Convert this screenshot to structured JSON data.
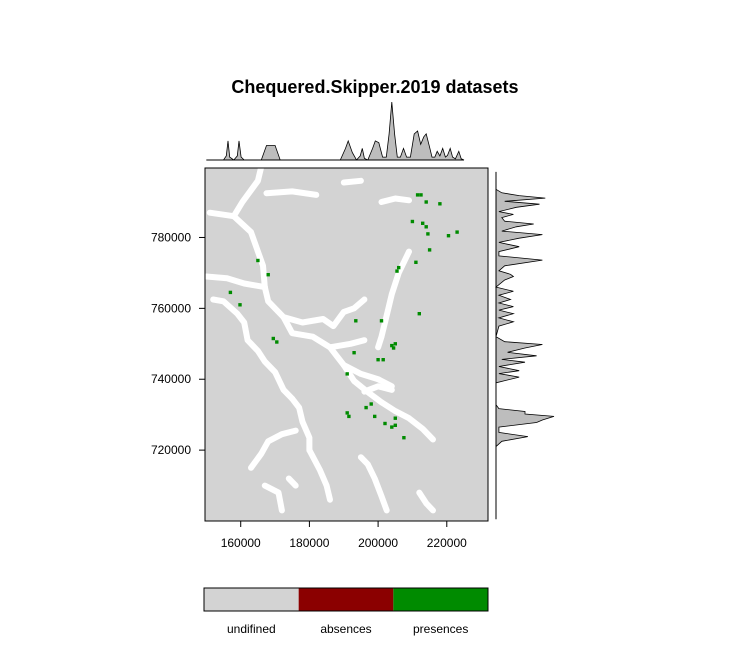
{
  "chart_data": {
    "type": "raster-map",
    "title": "Chequered.Skipper.2019 datasets",
    "x_ticks": [
      {
        "value": 160000,
        "label": "160000"
      },
      {
        "value": 180000,
        "label": "180000"
      },
      {
        "value": 200000,
        "label": "200000"
      },
      {
        "value": 220000,
        "label": "220000"
      }
    ],
    "y_ticks": [
      {
        "value": 720000,
        "label": "720000"
      },
      {
        "value": 740000,
        "label": "740000"
      },
      {
        "value": 760000,
        "label": "760000"
      },
      {
        "value": 780000,
        "label": "780000"
      }
    ],
    "xlim": [
      149600,
      232000
    ],
    "ylim": [
      700000,
      799600
    ],
    "legend": [
      {
        "label": "undifined",
        "color": "#d3d3d3"
      },
      {
        "label": "absences",
        "color": "#8b0000"
      },
      {
        "label": "presences",
        "color": "#008b00"
      }
    ],
    "presence_points": [
      [
        157000,
        764500
      ],
      [
        159800,
        761000
      ],
      [
        165000,
        773500
      ],
      [
        168000,
        769500
      ],
      [
        169500,
        751500
      ],
      [
        170500,
        750500
      ],
      [
        191000,
        730500
      ],
      [
        191500,
        729500
      ],
      [
        191000,
        741500
      ],
      [
        193000,
        747500
      ],
      [
        193500,
        756500
      ],
      [
        196500,
        732000
      ],
      [
        198000,
        733000
      ],
      [
        199000,
        729500
      ],
      [
        200000,
        745500
      ],
      [
        201500,
        745500
      ],
      [
        201000,
        756500
      ],
      [
        202000,
        727500
      ],
      [
        204000,
        749500
      ],
      [
        205000,
        750000
      ],
      [
        204500,
        748800
      ],
      [
        205000,
        729000
      ],
      [
        205000,
        727000
      ],
      [
        204000,
        726500
      ],
      [
        207500,
        723500
      ],
      [
        205500,
        770500
      ],
      [
        206000,
        771500
      ],
      [
        210000,
        784500
      ],
      [
        211000,
        773000
      ],
      [
        212000,
        758500
      ],
      [
        211500,
        792000
      ],
      [
        212500,
        792000
      ],
      [
        214000,
        790000
      ],
      [
        213000,
        784000
      ],
      [
        214000,
        783000
      ],
      [
        214500,
        781000
      ],
      [
        215000,
        776500
      ],
      [
        218000,
        789500
      ],
      [
        220500,
        780500
      ],
      [
        223000,
        781500
      ]
    ],
    "top_density": [
      [
        150000,
        0
      ],
      [
        155000,
        0
      ],
      [
        155800,
        0.07
      ],
      [
        156300,
        0.33
      ],
      [
        156800,
        0.05
      ],
      [
        158000,
        0
      ],
      [
        159000,
        0.07
      ],
      [
        159500,
        0.33
      ],
      [
        160100,
        0.05
      ],
      [
        161000,
        0
      ],
      [
        166000,
        0
      ],
      [
        167500,
        0.25
      ],
      [
        170000,
        0.25
      ],
      [
        171500,
        0
      ],
      [
        189000,
        0
      ],
      [
        190500,
        0.2
      ],
      [
        191300,
        0.33
      ],
      [
        192500,
        0.13
      ],
      [
        193700,
        0
      ],
      [
        194800,
        0.07
      ],
      [
        195400,
        0.2
      ],
      [
        196000,
        0.03
      ],
      [
        197000,
        0
      ],
      [
        198400,
        0.2
      ],
      [
        199200,
        0.33
      ],
      [
        200200,
        0.3
      ],
      [
        201300,
        0.05
      ],
      [
        202400,
        0.05
      ],
      [
        203200,
        0.45
      ],
      [
        204000,
        1.0
      ],
      [
        204800,
        0.45
      ],
      [
        205600,
        0.05
      ],
      [
        206500,
        0.05
      ],
      [
        207400,
        0.2
      ],
      [
        208300,
        0.05
      ],
      [
        209400,
        0.05
      ],
      [
        210500,
        0.45
      ],
      [
        211500,
        0.5
      ],
      [
        212400,
        0.27
      ],
      [
        213300,
        0.4
      ],
      [
        214000,
        0.45
      ],
      [
        215000,
        0.22
      ],
      [
        215700,
        0.05
      ],
      [
        216500,
        0.05
      ],
      [
        217200,
        0.15
      ],
      [
        218000,
        0.07
      ],
      [
        218800,
        0.2
      ],
      [
        219600,
        0.05
      ],
      [
        220200,
        0.08
      ],
      [
        221000,
        0.2
      ],
      [
        221700,
        0.05
      ],
      [
        222500,
        0.02
      ],
      [
        223500,
        0.15
      ],
      [
        224200,
        0.02
      ],
      [
        225000,
        0
      ]
    ],
    "right_density": [
      [
        721000,
        0
      ],
      [
        722500,
        0.1
      ],
      [
        723800,
        0.55
      ],
      [
        725000,
        0.05
      ],
      [
        726500,
        0.05
      ],
      [
        727800,
        0.7
      ],
      [
        728500,
        0.8
      ],
      [
        729500,
        1.0
      ],
      [
        730200,
        0.5
      ],
      [
        730900,
        0.5
      ],
      [
        731700,
        0.05
      ],
      [
        732800,
        0
      ],
      [
        739000,
        0
      ],
      [
        740600,
        0.4
      ],
      [
        741600,
        0.05
      ],
      [
        742400,
        0.4
      ],
      [
        743600,
        0.05
      ],
      [
        744800,
        0.5
      ],
      [
        745600,
        0.1
      ],
      [
        746600,
        0.7
      ],
      [
        747600,
        0.2
      ],
      [
        748800,
        0.5
      ],
      [
        749800,
        0.8
      ],
      [
        750600,
        0.15
      ],
      [
        752000,
        0
      ],
      [
        755000,
        0.05
      ],
      [
        756200,
        0.3
      ],
      [
        757300,
        0.05
      ],
      [
        758500,
        0.3
      ],
      [
        759500,
        0.05
      ],
      [
        760500,
        0.3
      ],
      [
        761500,
        0.05
      ],
      [
        762500,
        0.25
      ],
      [
        763700,
        0.05
      ],
      [
        764800,
        0.3
      ],
      [
        766000,
        0
      ],
      [
        768000,
        0.15
      ],
      [
        769000,
        0.3
      ],
      [
        769600,
        0.25
      ],
      [
        770600,
        0.05
      ],
      [
        772000,
        0.15
      ],
      [
        773600,
        0.8
      ],
      [
        774800,
        0.05
      ],
      [
        776000,
        0.05
      ],
      [
        777400,
        0.4
      ],
      [
        778600,
        0.05
      ],
      [
        779800,
        0.4
      ],
      [
        780800,
        0.8
      ],
      [
        781800,
        0.1
      ],
      [
        783000,
        0.35
      ],
      [
        783800,
        0.65
      ],
      [
        784600,
        0.15
      ],
      [
        785600,
        0.1
      ],
      [
        786500,
        0.3
      ],
      [
        787300,
        0.05
      ],
      [
        788500,
        0.35
      ],
      [
        789400,
        0.75
      ],
      [
        790200,
        0.15
      ],
      [
        791100,
        0.85
      ],
      [
        791800,
        0.4
      ],
      [
        792600,
        0.1
      ],
      [
        793600,
        0
      ]
    ],
    "white_paths": [
      [
        [
          150000,
          769000
        ],
        [
          156000,
          768500
        ],
        [
          161000,
          767000
        ],
        [
          164000,
          766500
        ],
        [
          167000,
          766000
        ]
      ],
      [
        [
          167000,
          766000
        ],
        [
          168000,
          762000
        ],
        [
          172500,
          757500
        ],
        [
          178000,
          756000
        ],
        [
          184000,
          757000
        ],
        [
          187000,
          755000
        ],
        [
          190000,
          759000
        ],
        [
          193000,
          760000
        ],
        [
          196000,
          762500
        ]
      ],
      [
        [
          167000,
          766000
        ],
        [
          166500,
          772000
        ],
        [
          163000,
          781500
        ],
        [
          158000,
          786000
        ]
      ],
      [
        [
          158000,
          786000
        ],
        [
          160500,
          790000
        ],
        [
          165000,
          796000
        ],
        [
          166000,
          800000
        ]
      ],
      [
        [
          158000,
          786000
        ],
        [
          151000,
          787000
        ]
      ],
      [
        [
          152000,
          762500
        ],
        [
          155000,
          762000
        ],
        [
          159000,
          758500
        ],
        [
          161000,
          756000
        ],
        [
          162000,
          751000
        ],
        [
          165000,
          748000
        ],
        [
          167000,
          745000
        ],
        [
          170000,
          742000
        ],
        [
          172500,
          737000
        ],
        [
          175000,
          734500
        ]
      ],
      [
        [
          172500,
          757500
        ],
        [
          175000,
          753000
        ],
        [
          181000,
          752000
        ],
        [
          186000,
          749000
        ],
        [
          190000,
          744000
        ],
        [
          195000,
          741500
        ],
        [
          200000,
          740000
        ],
        [
          204000,
          738000
        ]
      ],
      [
        [
          175000,
          734500
        ],
        [
          177000,
          732000
        ],
        [
          178000,
          728000
        ],
        [
          180000,
          723500
        ],
        [
          180000,
          720000
        ]
      ],
      [
        [
          176000,
          725500
        ],
        [
          172000,
          724500
        ],
        [
          168000,
          722500
        ],
        [
          166000,
          719000
        ],
        [
          163000,
          715000
        ]
      ],
      [
        [
          180000,
          720000
        ],
        [
          183000,
          714500
        ],
        [
          185000,
          710000
        ],
        [
          186000,
          706000
        ]
      ],
      [
        [
          186000,
          749000
        ],
        [
          192000,
          750000
        ],
        [
          196000,
          751000
        ]
      ],
      [
        [
          190000,
          744000
        ],
        [
          193000,
          739500
        ],
        [
          197500,
          736000
        ],
        [
          201000,
          733500
        ],
        [
          205000,
          731000
        ],
        [
          209000,
          729000
        ],
        [
          213000,
          726000
        ],
        [
          216000,
          723000
        ]
      ],
      [
        [
          200000,
          749000
        ],
        [
          201000,
          752000
        ],
        [
          202500,
          758000
        ],
        [
          204000,
          764000
        ],
        [
          206000,
          770000
        ],
        [
          209000,
          776000
        ]
      ],
      [
        [
          196000,
          736500
        ],
        [
          200000,
          738000
        ],
        [
          204000,
          737000
        ]
      ],
      [
        [
          195000,
          718000
        ],
        [
          197000,
          716000
        ],
        [
          199000,
          712000
        ],
        [
          201000,
          707000
        ],
        [
          202500,
          703000
        ]
      ],
      [
        [
          167000,
          710000
        ],
        [
          171000,
          708000
        ],
        [
          172000,
          703000
        ]
      ],
      [
        [
          174000,
          712000
        ],
        [
          176000,
          710000
        ]
      ],
      [
        [
          212000,
          708000
        ],
        [
          214000,
          705000
        ],
        [
          216000,
          703000
        ]
      ],
      [
        [
          167500,
          792500
        ],
        [
          175000,
          793000
        ],
        [
          182000,
          792000
        ]
      ],
      [
        [
          190000,
          795500
        ],
        [
          195000,
          796000
        ]
      ],
      [
        [
          201000,
          790000
        ],
        [
          205000,
          791000
        ],
        [
          209000,
          790500
        ]
      ]
    ]
  }
}
